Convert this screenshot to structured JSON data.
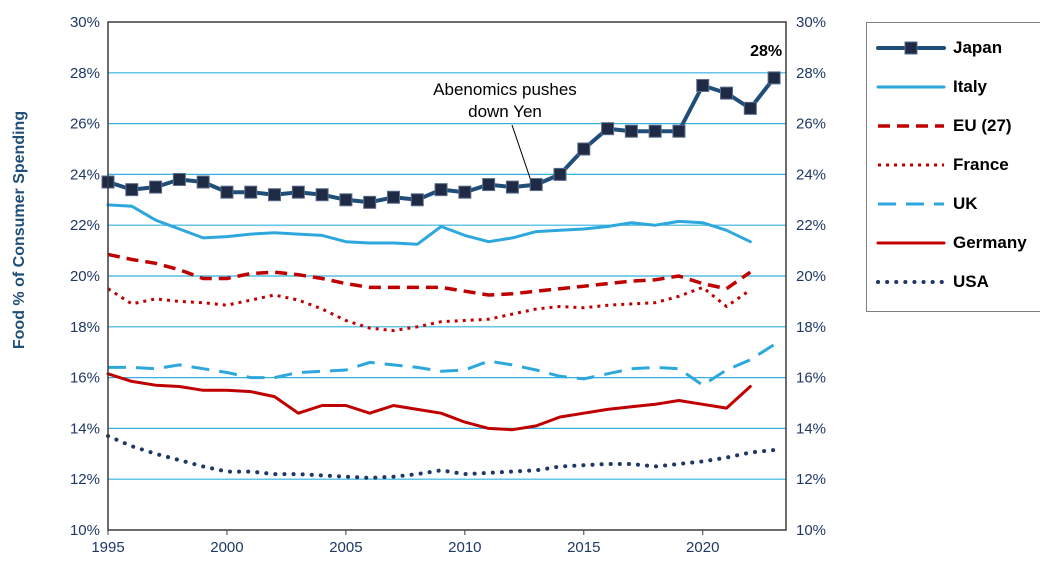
{
  "chart_data": {
    "type": "line",
    "ylabel": "Food % of Consumer Spending",
    "xlim": [
      1995,
      2023.5
    ],
    "ylim": [
      10,
      30
    ],
    "x_ticks": [
      1995,
      2000,
      2005,
      2010,
      2015,
      2020
    ],
    "y_ticks": [
      "10%",
      "12%",
      "14%",
      "16%",
      "18%",
      "20%",
      "22%",
      "24%",
      "26%",
      "28%",
      "30%"
    ],
    "grid": true,
    "legend_position": "right",
    "annotations": [
      {
        "text_lines": [
          "Abenomics pushes",
          "down Yen"
        ],
        "points_to": {
          "x": 2013,
          "y": 23.6
        }
      },
      {
        "text": "28%",
        "at": {
          "x": 2023,
          "y": 27.8
        }
      }
    ],
    "series": [
      {
        "name": "Japan",
        "color": "#1f4e79",
        "style": "line-square-markers",
        "x": [
          1995,
          1996,
          1997,
          1998,
          1999,
          2000,
          2001,
          2002,
          2003,
          2004,
          2005,
          2006,
          2007,
          2008,
          2009,
          2010,
          2011,
          2012,
          2013,
          2014,
          2015,
          2016,
          2017,
          2018,
          2019,
          2020,
          2021,
          2022,
          2023
        ],
        "values": [
          23.7,
          23.4,
          23.5,
          23.8,
          23.7,
          23.3,
          23.3,
          23.2,
          23.3,
          23.2,
          23.0,
          22.9,
          23.1,
          23.0,
          23.4,
          23.3,
          23.6,
          23.5,
          23.6,
          24.0,
          25.0,
          25.8,
          25.7,
          25.7,
          25.7,
          27.5,
          27.2,
          26.6,
          27.8
        ]
      },
      {
        "name": "Italy",
        "color": "#2ea8dc",
        "style": "solid",
        "x": [
          1995,
          1996,
          1997,
          1998,
          1999,
          2000,
          2001,
          2002,
          2003,
          2004,
          2005,
          2006,
          2007,
          2008,
          2009,
          2010,
          2011,
          2012,
          2013,
          2014,
          2015,
          2016,
          2017,
          2018,
          2019,
          2020,
          2021,
          2022
        ],
        "values": [
          22.8,
          22.75,
          22.2,
          21.85,
          21.5,
          21.55,
          21.65,
          21.7,
          21.65,
          21.6,
          21.35,
          21.3,
          21.3,
          21.25,
          21.95,
          21.6,
          21.35,
          21.5,
          21.75,
          21.8,
          21.85,
          21.95,
          22.1,
          22.0,
          22.15,
          22.1,
          21.8,
          21.35
        ]
      },
      {
        "name": "EU (27)",
        "color": "#c00000",
        "style": "dashed",
        "x": [
          1995,
          1996,
          1997,
          1998,
          1999,
          2000,
          2001,
          2002,
          2003,
          2004,
          2005,
          2006,
          2007,
          2008,
          2009,
          2010,
          2011,
          2012,
          2013,
          2014,
          2015,
          2016,
          2017,
          2018,
          2019,
          2020,
          2021,
          2022
        ],
        "values": [
          20.85,
          20.65,
          20.5,
          20.25,
          19.9,
          19.9,
          20.1,
          20.15,
          20.05,
          19.9,
          19.7,
          19.55,
          19.55,
          19.55,
          19.55,
          19.4,
          19.25,
          19.3,
          19.4,
          19.5,
          19.6,
          19.7,
          19.8,
          19.85,
          20.0,
          19.7,
          19.5,
          20.15
        ]
      },
      {
        "name": "France",
        "color": "#c00000",
        "style": "dotted",
        "x": [
          1995,
          1996,
          1997,
          1998,
          1999,
          2000,
          2001,
          2002,
          2003,
          2004,
          2005,
          2006,
          2007,
          2008,
          2009,
          2010,
          2011,
          2012,
          2013,
          2014,
          2015,
          2016,
          2017,
          2018,
          2019,
          2020,
          2021,
          2022
        ],
        "values": [
          19.5,
          18.9,
          19.1,
          19.0,
          18.95,
          18.85,
          19.05,
          19.25,
          19.05,
          18.7,
          18.25,
          17.95,
          17.85,
          18.0,
          18.2,
          18.25,
          18.3,
          18.5,
          18.7,
          18.8,
          18.75,
          18.85,
          18.9,
          18.95,
          19.2,
          19.55,
          18.8,
          19.45
        ]
      },
      {
        "name": "UK",
        "color": "#2ea8dc",
        "style": "long-dash",
        "x": [
          1995,
          1996,
          1997,
          1998,
          1999,
          2000,
          2001,
          2002,
          2003,
          2004,
          2005,
          2006,
          2007,
          2008,
          2009,
          2010,
          2011,
          2012,
          2013,
          2014,
          2015,
          2016,
          2017,
          2018,
          2019,
          2020,
          2021,
          2022,
          2023
        ],
        "values": [
          16.4,
          16.4,
          16.35,
          16.5,
          16.35,
          16.2,
          16.0,
          16.0,
          16.2,
          16.25,
          16.3,
          16.6,
          16.5,
          16.4,
          16.25,
          16.3,
          16.65,
          16.5,
          16.3,
          16.05,
          15.95,
          16.15,
          16.35,
          16.4,
          16.35,
          15.7,
          16.3,
          16.7,
          17.3
        ]
      },
      {
        "name": "Germany",
        "color": "#c00000",
        "style": "solid",
        "x": [
          1995,
          1996,
          1997,
          1998,
          1999,
          2000,
          2001,
          2002,
          2003,
          2004,
          2005,
          2006,
          2007,
          2008,
          2009,
          2010,
          2011,
          2012,
          2013,
          2014,
          2015,
          2016,
          2017,
          2018,
          2019,
          2020,
          2021,
          2022
        ],
        "values": [
          16.15,
          15.85,
          15.7,
          15.65,
          15.5,
          15.5,
          15.45,
          15.25,
          14.6,
          14.9,
          14.9,
          14.6,
          14.9,
          14.75,
          14.6,
          14.25,
          14.0,
          13.95,
          14.1,
          14.45,
          14.6,
          14.75,
          14.85,
          14.95,
          15.1,
          14.95,
          14.8,
          15.65
        ]
      },
      {
        "name": "USA",
        "color": "#1f3864",
        "style": "round-dotted",
        "x": [
          1995,
          1996,
          1997,
          1998,
          1999,
          2000,
          2001,
          2002,
          2003,
          2004,
          2005,
          2006,
          2007,
          2008,
          2009,
          2010,
          2011,
          2012,
          2013,
          2014,
          2015,
          2016,
          2017,
          2018,
          2019,
          2020,
          2021,
          2022,
          2023
        ],
        "values": [
          13.7,
          13.3,
          13.0,
          12.75,
          12.5,
          12.3,
          12.3,
          12.2,
          12.2,
          12.15,
          12.1,
          12.05,
          12.1,
          12.2,
          12.35,
          12.2,
          12.25,
          12.3,
          12.35,
          12.5,
          12.55,
          12.6,
          12.6,
          12.5,
          12.6,
          12.7,
          12.85,
          13.05,
          13.15
        ]
      }
    ]
  }
}
